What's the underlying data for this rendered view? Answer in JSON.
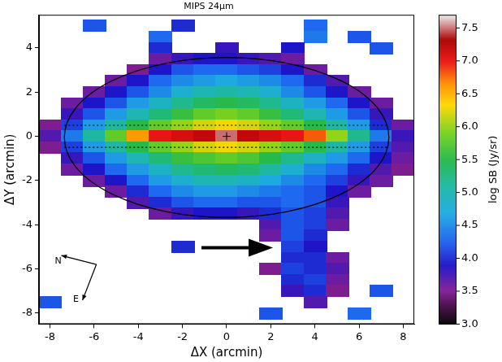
{
  "chart_data": {
    "type": "heatmap",
    "title": "MIPS 24μm",
    "x_label": "ΔX (arcmin)",
    "y_label": "ΔY (arcmin)",
    "xlim": [
      -8.5,
      8.5
    ],
    "ylim": [
      -8.5,
      5.5
    ],
    "xticks": [
      -8,
      -6,
      -4,
      -2,
      0,
      2,
      4,
      6,
      8
    ],
    "yticks": [
      -8,
      -6,
      -4,
      -2,
      0,
      2,
      4
    ],
    "grid": false,
    "colorbar": {
      "label": "log SB (Jy/sr)",
      "range": [
        3.0,
        7.7
      ],
      "ticks": [
        {
          "value": 3,
          "label": "3.0"
        },
        {
          "value": 3.5,
          "label": "3.5"
        },
        {
          "value": 4,
          "label": "4.0"
        },
        {
          "value": 4.5,
          "label": "4.5"
        },
        {
          "value": 5,
          "label": "5.0"
        },
        {
          "value": 5.5,
          "label": "5.5"
        },
        {
          "value": 6,
          "label": "6.0"
        },
        {
          "value": 6.5,
          "label": "6.5"
        },
        {
          "value": 7,
          "label": "7.0"
        },
        {
          "value": 7.5,
          "label": "7.5"
        }
      ]
    },
    "cells": {
      "x": [
        -8,
        -7,
        -6,
        -5,
        -4,
        -3,
        -2,
        -1,
        0,
        1,
        2,
        3,
        4,
        5,
        6,
        7,
        8
      ],
      "y": [
        5,
        4.5,
        4,
        3.5,
        3,
        2.5,
        2,
        1.5,
        1,
        0.5,
        0,
        -0.5,
        -1,
        -1.5,
        -2,
        -2.5,
        -3,
        -3.5,
        -4,
        -4.5,
        -5,
        -5.5,
        -6,
        -6.5,
        -7,
        -7.5,
        -8
      ],
      "values": [
        [
          null,
          null,
          4.2,
          null,
          null,
          null,
          4.0,
          null,
          null,
          null,
          null,
          null,
          4.3,
          null,
          null,
          null,
          null
        ],
        [
          null,
          null,
          null,
          null,
          null,
          4.3,
          null,
          null,
          null,
          null,
          null,
          null,
          4.4,
          null,
          4.2,
          null,
          null
        ],
        [
          null,
          null,
          null,
          null,
          null,
          4.0,
          null,
          null,
          3.8,
          null,
          null,
          3.9,
          null,
          null,
          null,
          4.2,
          null
        ],
        [
          null,
          null,
          null,
          null,
          null,
          3.6,
          3.8,
          3.9,
          3.9,
          3.8,
          3.7,
          3.6,
          null,
          null,
          null,
          null,
          null
        ],
        [
          null,
          null,
          null,
          null,
          3.5,
          3.9,
          4.2,
          4.3,
          4.3,
          4.2,
          4.1,
          3.9,
          3.6,
          null,
          null,
          null,
          null
        ],
        [
          null,
          null,
          null,
          3.6,
          3.9,
          4.3,
          4.5,
          4.6,
          4.7,
          4.6,
          4.5,
          4.3,
          4.0,
          3.7,
          null,
          null,
          null
        ],
        [
          null,
          null,
          3.6,
          3.9,
          4.2,
          4.5,
          4.8,
          5.0,
          5.1,
          5.0,
          4.8,
          4.5,
          4.2,
          3.9,
          3.6,
          null,
          null
        ],
        [
          null,
          3.6,
          3.9,
          4.2,
          4.6,
          4.9,
          5.2,
          5.4,
          5.5,
          5.4,
          5.2,
          4.9,
          4.6,
          4.3,
          3.9,
          3.6,
          null
        ],
        [
          null,
          3.8,
          4.2,
          4.6,
          5.0,
          5.3,
          5.6,
          5.8,
          5.9,
          5.8,
          5.6,
          5.3,
          5.0,
          4.6,
          4.2,
          3.8,
          null
        ],
        [
          3.5,
          4.1,
          4.6,
          5.1,
          5.5,
          5.8,
          6.0,
          6.2,
          6.3,
          6.2,
          6.0,
          5.8,
          5.5,
          5.1,
          4.6,
          4.0,
          3.6
        ],
        [
          3.7,
          4.4,
          5.1,
          5.8,
          6.6,
          7.0,
          7.1,
          7.2,
          7.5,
          7.2,
          7.1,
          7.0,
          6.8,
          6.0,
          5.2,
          4.4,
          3.8
        ],
        [
          3.5,
          4.1,
          4.6,
          5.1,
          5.5,
          5.8,
          6.0,
          6.2,
          6.3,
          6.2,
          6.0,
          5.8,
          5.5,
          5.1,
          4.6,
          4.1,
          3.7
        ],
        [
          null,
          3.8,
          4.2,
          4.6,
          5.0,
          5.3,
          5.6,
          5.7,
          5.8,
          5.7,
          5.5,
          5.2,
          4.9,
          4.6,
          4.3,
          3.9,
          3.6
        ],
        [
          null,
          3.6,
          3.9,
          4.3,
          4.6,
          4.9,
          5.2,
          5.3,
          5.4,
          5.3,
          5.1,
          4.8,
          4.5,
          4.3,
          4.0,
          3.7,
          3.5
        ],
        [
          null,
          null,
          3.6,
          3.9,
          4.3,
          4.6,
          4.8,
          5.0,
          5.0,
          4.9,
          4.7,
          4.5,
          4.3,
          4.1,
          3.8,
          3.6,
          null
        ],
        [
          null,
          null,
          null,
          3.6,
          4.0,
          4.3,
          4.5,
          4.6,
          4.6,
          4.5,
          4.4,
          4.3,
          4.2,
          3.9,
          3.6,
          null,
          null
        ],
        [
          null,
          null,
          null,
          null,
          3.7,
          4.0,
          4.2,
          4.3,
          4.3,
          4.2,
          4.2,
          4.3,
          4.2,
          3.8,
          null,
          null,
          null
        ],
        [
          null,
          null,
          null,
          null,
          null,
          3.6,
          3.8,
          3.9,
          3.9,
          3.8,
          4.0,
          4.2,
          4.1,
          3.7,
          null,
          null,
          null
        ],
        [
          null,
          null,
          null,
          null,
          null,
          null,
          null,
          null,
          null,
          null,
          3.7,
          4.2,
          4.1,
          3.6,
          null,
          null,
          null
        ],
        [
          null,
          null,
          null,
          null,
          null,
          null,
          null,
          null,
          null,
          null,
          3.6,
          4.2,
          4.0,
          null,
          null,
          null,
          null
        ],
        [
          null,
          null,
          null,
          null,
          null,
          null,
          4.0,
          null,
          null,
          null,
          null,
          4.1,
          3.9,
          null,
          null,
          null,
          null
        ],
        [
          null,
          null,
          null,
          null,
          null,
          null,
          null,
          null,
          null,
          null,
          null,
          4.0,
          4.0,
          3.6,
          null,
          null,
          null
        ],
        [
          null,
          null,
          null,
          null,
          null,
          null,
          null,
          null,
          null,
          null,
          3.5,
          4.1,
          4.0,
          3.7,
          null,
          null,
          null
        ],
        [
          null,
          null,
          null,
          null,
          null,
          null,
          null,
          null,
          null,
          null,
          null,
          4.0,
          4.1,
          3.6,
          null,
          null,
          null
        ],
        [
          null,
          null,
          null,
          null,
          null,
          null,
          null,
          null,
          null,
          null,
          null,
          3.8,
          4.0,
          3.5,
          null,
          4.2,
          null
        ],
        [
          4.2,
          null,
          null,
          null,
          null,
          null,
          null,
          null,
          null,
          null,
          null,
          null,
          3.7,
          null,
          null,
          null,
          null
        ],
        [
          null,
          null,
          null,
          null,
          null,
          null,
          null,
          null,
          null,
          null,
          4.2,
          null,
          null,
          null,
          4.3,
          null,
          null
        ]
      ]
    },
    "ellipse": {
      "cx": 0,
      "cy": -0.05,
      "rx": 7.35,
      "ry": 3.62
    },
    "lines": [
      {
        "x": [
          -7.35,
          7.35
        ],
        "y": [
          0.5,
          0.5
        ],
        "line_style": "dotted"
      },
      {
        "x": [
          -7.35,
          7.35
        ],
        "y": [
          -0.5,
          -0.5
        ],
        "line_style": "dotted"
      }
    ],
    "center_marker": {
      "x": 0,
      "y": 0,
      "marker": "plus"
    },
    "arrow": {
      "x": [
        -1.14,
        2.1
      ],
      "y": [
        -5.04,
        -5.04
      ]
    },
    "compass": {
      "x": -5.9,
      "y": -5.8,
      "labels": [
        "N",
        "E"
      ]
    }
  }
}
